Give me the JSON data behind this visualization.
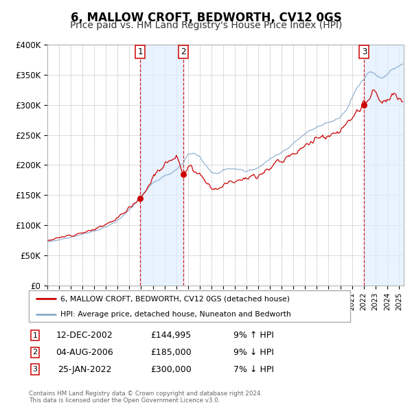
{
  "title": "6, MALLOW CROFT, BEDWORTH, CV12 0GS",
  "subtitle": "Price paid vs. HM Land Registry's House Price Index (HPI)",
  "ylim": [
    0,
    400000
  ],
  "yticks": [
    0,
    50000,
    100000,
    150000,
    200000,
    250000,
    300000,
    350000,
    400000
  ],
  "ytick_labels": [
    "£0",
    "£50K",
    "£100K",
    "£150K",
    "£200K",
    "£250K",
    "£300K",
    "£350K",
    "£400K"
  ],
  "line1_color": "#cc0000",
  "line2_color": "#88aacc",
  "sale1_year": 2002.917,
  "sale1_price": 144995,
  "sale2_year": 2006.583,
  "sale2_price": 185000,
  "sale3_year": 2022.042,
  "sale3_price": 300000,
  "vline_color": "#cc0000",
  "shade_color": "#ddeeff",
  "legend_line1": "6, MALLOW CROFT, BEDWORTH, CV12 0GS (detached house)",
  "legend_line2": "HPI: Average price, detached house, Nuneaton and Bedworth",
  "table_rows": [
    [
      "1",
      "12-DEC-2002",
      "£144,995",
      "9% ↑ HPI"
    ],
    [
      "2",
      "04-AUG-2006",
      "£185,000",
      "9% ↓ HPI"
    ],
    [
      "3",
      "25-JAN-2022",
      "£300,000",
      "7% ↓ HPI"
    ]
  ],
  "footnote": "Contains HM Land Registry data © Crown copyright and database right 2024.\nThis data is licensed under the Open Government Licence v3.0.",
  "background_color": "#ffffff",
  "grid_color": "#cccccc",
  "title_fontsize": 12,
  "subtitle_fontsize": 10,
  "tick_fontsize": 8.5
}
